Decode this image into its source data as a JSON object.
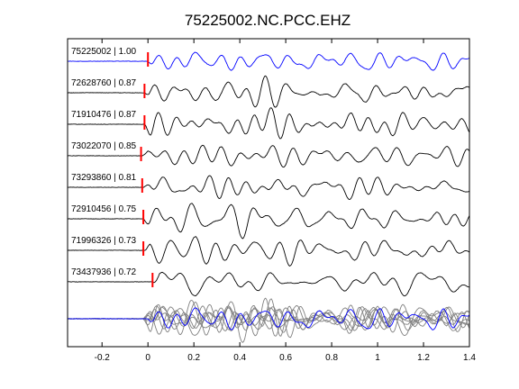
{
  "chart_data": {
    "type": "line",
    "title": "75225002.NC.PCC.EHZ",
    "xlabel": "",
    "ylabel": "",
    "xlim": [
      -0.35,
      1.4
    ],
    "xticks": [
      -0.2,
      0,
      0.2,
      0.4,
      0.6,
      0.8,
      1,
      1.2,
      1.4
    ],
    "xtick_labels": [
      "-0.2",
      "0",
      "0.2",
      "0.4",
      "0.6",
      "0.8",
      "1",
      "1.2",
      "1.4"
    ],
    "grid": false,
    "colors": {
      "reference": "#0000ff",
      "trace": "#000000",
      "stack": "#808080",
      "pick": "#ff0000",
      "axes": "#000000"
    },
    "series": [
      {
        "label": "75225002 | 1.00",
        "pick_time": 0.0
      },
      {
        "label": "72628760 | 0.87",
        "pick_time": -0.015
      },
      {
        "label": "71910476 | 0.87",
        "pick_time": -0.015
      },
      {
        "label": "73022070 | 0.85",
        "pick_time": -0.03
      },
      {
        "label": "73293860 | 0.81",
        "pick_time": -0.025
      },
      {
        "label": "72910456 | 0.75",
        "pick_time": -0.02
      },
      {
        "label": "71996326 | 0.73",
        "pick_time": -0.02
      },
      {
        "label": "73437936 | 0.72",
        "pick_time": 0.02
      }
    ],
    "stack": {
      "description": "overlay"
    }
  }
}
